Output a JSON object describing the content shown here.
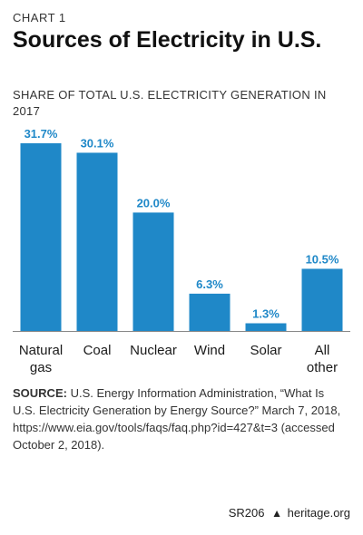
{
  "header": {
    "kicker": "CHART 1",
    "title": "Sources of Electricity in U.S.",
    "subtitle": "SHARE OF TOTAL U.S. ELECTRICITY GENERATION IN 2017"
  },
  "colors": {
    "bar": "#1f88c8",
    "text": "#1a1a1a",
    "axis": "#888888"
  },
  "chart_data": {
    "type": "bar",
    "categories": [
      [
        "Natural",
        "gas"
      ],
      [
        "Coal"
      ],
      [
        "Nuclear"
      ],
      [
        "Wind"
      ],
      [
        "Solar"
      ],
      [
        "All",
        "other"
      ]
    ],
    "values": [
      31.7,
      30.1,
      20.0,
      6.3,
      1.3,
      10.5
    ],
    "value_labels": [
      "31.7%",
      "30.1%",
      "20.0%",
      "6.3%",
      "1.3%",
      "10.5%"
    ],
    "title": "Sources of Electricity in U.S.",
    "ylim": [
      0,
      31.7
    ],
    "grid": false
  },
  "source": {
    "label": "SOURCE:",
    "text": "U.S. Energy Information Administration, “What Is U.S. Electricity Generation by Energy Source?” March 7, 2018, https://www.eia.gov/tools/faqs/faq.php?id=427&t=3 (accessed October 2, 2018)."
  },
  "footer": {
    "code": "SR206",
    "site": "heritage.org"
  }
}
